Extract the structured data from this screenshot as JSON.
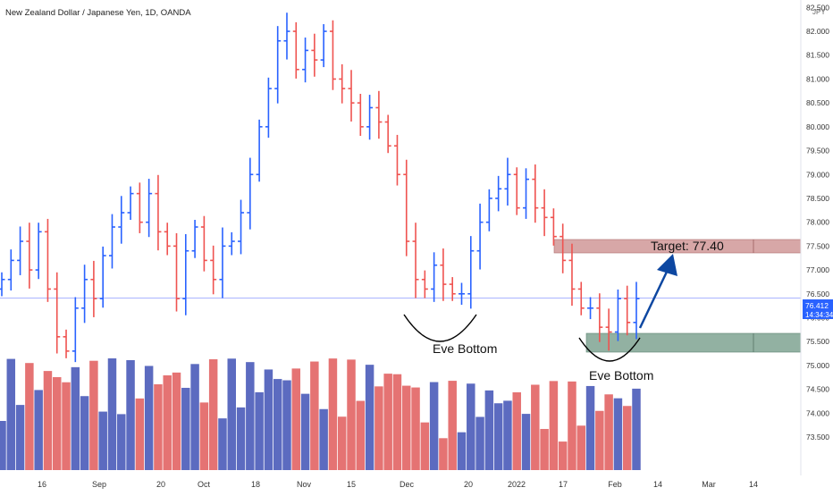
{
  "symbol_title": "New Zealand Dollar / Japanese Yen, 1D, OANDA",
  "currency": "JPY",
  "last_price": {
    "value": "76.412",
    "countdown": "14:34:34"
  },
  "annotations": {
    "target_label": "Target: 77.40",
    "eve_bottom_1": "Eve Bottom",
    "eve_bottom_2": "Eve Bottom"
  },
  "colors": {
    "up": "#2962ff",
    "down": "#ef5350",
    "vol_up": "#5c6bc0",
    "vol_down": "#e57373",
    "resistance": "#c98a8a",
    "support": "#7fa392",
    "arrow": "#0d47a1",
    "price_line": "#aab4ff"
  },
  "chart_data": {
    "type": "ohlc-bar",
    "title": "New Zealand Dollar / Japanese Yen, 1D, OANDA",
    "y_ticks": [
      "82.500",
      "82.000",
      "81.500",
      "81.000",
      "80.500",
      "80.000",
      "79.500",
      "79.000",
      "78.500",
      "78.000",
      "77.500",
      "77.000",
      "76.500",
      "76.000",
      "75.500",
      "75.000",
      "74.500",
      "74.000",
      "73.500"
    ],
    "x_ticks": [
      "16",
      "Sep",
      "20",
      "Oct",
      "18",
      "Nov",
      "15",
      "Dec",
      "20",
      "2022",
      "17",
      "Feb",
      "14",
      "Mar",
      "14"
    ],
    "ylim": [
      73.2,
      82.6
    ],
    "closes": [
      76.8,
      77.2,
      77.6,
      77.0,
      77.8,
      76.6,
      75.6,
      75.3,
      76.2,
      76.8,
      76.4,
      77.3,
      77.9,
      78.2,
      78.6,
      78.0,
      78.6,
      77.8,
      77.5,
      76.4,
      77.4,
      77.9,
      77.2,
      76.8,
      77.5,
      77.6,
      78.2,
      79.0,
      80.0,
      80.8,
      81.8,
      82.0,
      81.2,
      81.6,
      81.4,
      82.0,
      81.0,
      80.8,
      80.5,
      80.0,
      80.4,
      80.1,
      79.6,
      79.0,
      77.6,
      76.8,
      76.6,
      77.1,
      76.7,
      76.5,
      76.5,
      77.4,
      78.0,
      78.5,
      78.7,
      79.0,
      78.3,
      78.9,
      78.3,
      78.1,
      77.7,
      77.2,
      76.6,
      76.2,
      76.2,
      75.8,
      75.7,
      76.4,
      75.9,
      76.4
    ],
    "volume_note": "Volume histogram along the bottom, colored by bar direction"
  }
}
